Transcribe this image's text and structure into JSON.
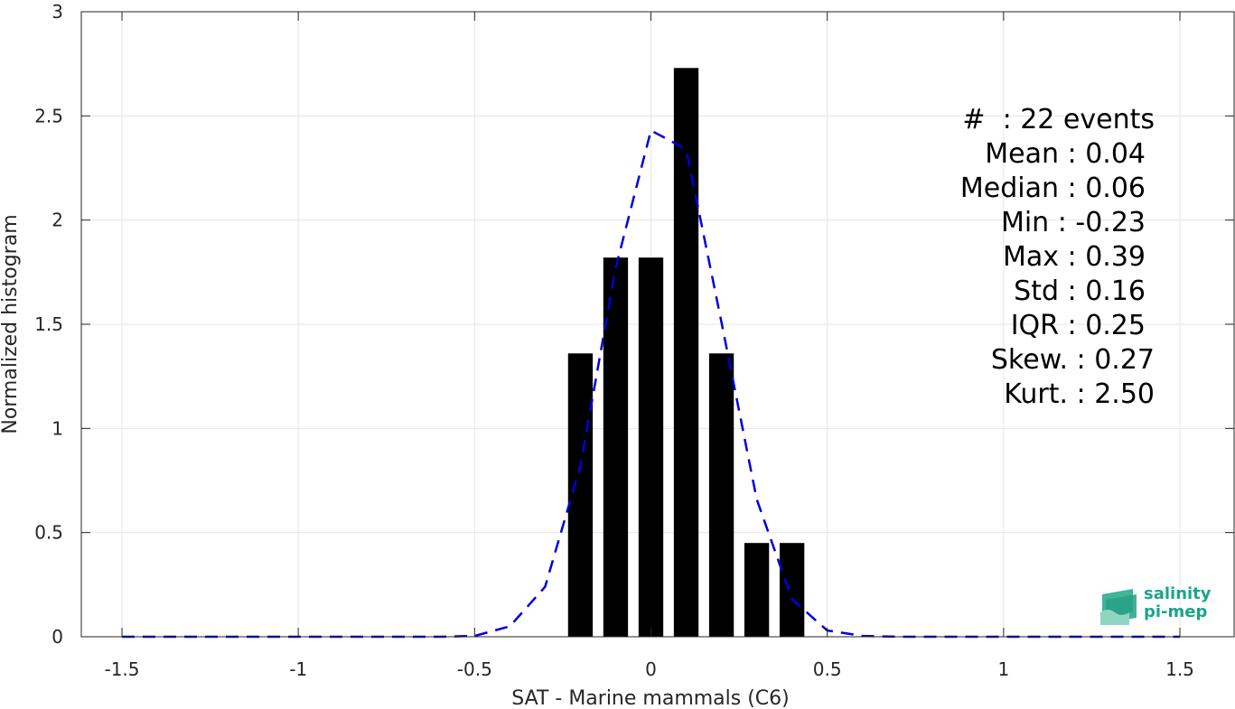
{
  "chart_data": {
    "type": "bar",
    "xlabel": "SAT - Marine mammals (C6)",
    "ylabel": "Normalized histogram",
    "xlim": [
      -1.5,
      1.5
    ],
    "ylim": [
      0,
      3
    ],
    "xticks": [
      -1.5,
      -1,
      -0.5,
      0,
      0.5,
      1,
      1.5
    ],
    "xtick_labels": [
      "-1.5",
      "-1",
      "-0.5",
      "0",
      "0.5",
      "1",
      "1.5"
    ],
    "yticks": [
      0,
      0.5,
      1,
      1.5,
      2,
      2.5,
      3
    ],
    "ytick_labels": [
      "0",
      "0.5",
      "1",
      "1.5",
      "2",
      "2.5",
      "3"
    ],
    "grid": true,
    "bins": {
      "centers": [
        -0.2,
        -0.1,
        0.0,
        0.1,
        0.2,
        0.3,
        0.4
      ],
      "values": [
        1.36,
        1.82,
        1.82,
        2.73,
        1.36,
        0.45,
        0.45
      ],
      "bar_width": 0.07,
      "color": "#000000"
    },
    "fit_curve": {
      "style": "dashed",
      "color": "#0000dd",
      "x": [
        -1.5,
        -1.4,
        -1.3,
        -1.2,
        -1.1,
        -1.0,
        -0.9,
        -0.8,
        -0.7,
        -0.6,
        -0.5,
        -0.4,
        -0.3,
        -0.2,
        -0.1,
        0.0,
        0.1,
        0.2,
        0.3,
        0.4,
        0.5,
        0.6,
        0.7,
        0.8,
        0.9,
        1.0,
        1.1,
        1.2,
        1.3,
        1.4,
        1.5
      ],
      "y": [
        0,
        0,
        0,
        0,
        0,
        0,
        0,
        0,
        0,
        0,
        0.004,
        0.05,
        0.24,
        0.82,
        1.77,
        2.43,
        2.34,
        1.51,
        0.66,
        0.18,
        0.03,
        0.004,
        0,
        0,
        0,
        0,
        0,
        0,
        0,
        0,
        0
      ]
    }
  },
  "stats": [
    "#  : 22 events",
    "Mean : 0.04",
    "Median : 0.06",
    "Min : -0.23",
    "Max : 0.39",
    "Std : 0.16",
    "IQR : 0.25",
    "Skew. : 0.27",
    "Kurt. : 2.50"
  ],
  "logo": {
    "line1": "salinity",
    "line2": "pi-mep",
    "color": "#1aa58a"
  }
}
